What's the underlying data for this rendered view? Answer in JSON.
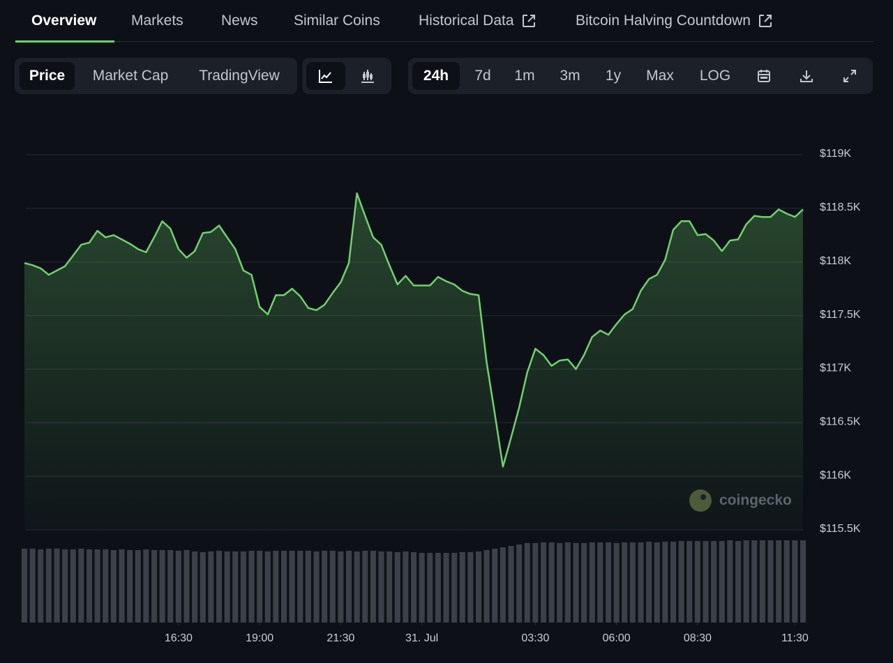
{
  "tabs": [
    "Overview",
    "Markets",
    "News",
    "Similar Coins",
    "Historical Data",
    "Bitcoin Halving Countdown"
  ],
  "chart_modes": [
    "Price",
    "Market Cap",
    "TradingView"
  ],
  "ranges": [
    "24h",
    "7d",
    "1m",
    "3m",
    "1y",
    "Max",
    "LOG"
  ],
  "watermark": "coingecko",
  "chart_data": {
    "type": "line",
    "color": "#6fd36b",
    "grid": true,
    "x": [
      11.75,
      12,
      12.25,
      12.5,
      12.75,
      13,
      13.25,
      13.5,
      13.75,
      14,
      14.25,
      14.5,
      14.75,
      15,
      15.25,
      15.5,
      15.75,
      16,
      16.25,
      16.5,
      16.75,
      17,
      17.25,
      17.5,
      17.75,
      18,
      18.25,
      18.5,
      18.75,
      19,
      19.25,
      19.5,
      19.75,
      20,
      20.25,
      20.5,
      20.75,
      21,
      21.25,
      21.5,
      21.75,
      22,
      22.25,
      22.5,
      22.75,
      23,
      23.25,
      23.5,
      23.75,
      24,
      24.25,
      24.5,
      24.75,
      25,
      25.25,
      25.5,
      25.75,
      26,
      26.25,
      26.5,
      26.75,
      27,
      27.25,
      27.5,
      27.75,
      28,
      28.25,
      28.5,
      28.75,
      29,
      29.25,
      29.5,
      29.75,
      30,
      30.25,
      30.5,
      30.75,
      31,
      31.25,
      31.5,
      31.75,
      32,
      32.25,
      32.5,
      32.75,
      33,
      33.25,
      33.5,
      33.75,
      34,
      34.25,
      34.5,
      34.75,
      35,
      35.25,
      35.5,
      35.75
    ],
    "values": [
      117990,
      117970,
      117940,
      117880,
      117920,
      117960,
      118060,
      118160,
      118180,
      118290,
      118230,
      118250,
      118210,
      118170,
      118120,
      118090,
      118230,
      118380,
      118310,
      118120,
      118040,
      118100,
      118270,
      118280,
      118340,
      118230,
      118120,
      117920,
      117880,
      117580,
      117510,
      117690,
      117690,
      117750,
      117680,
      117570,
      117550,
      117600,
      117710,
      117810,
      117990,
      118640,
      118430,
      118230,
      118160,
      117970,
      117790,
      117870,
      117780,
      117780,
      117780,
      117860,
      117820,
      117790,
      117730,
      117700,
      117690,
      117060,
      116580,
      116090,
      116360,
      116640,
      116970,
      117190,
      117130,
      117030,
      117080,
      117090,
      117000,
      117130,
      117300,
      117360,
      117320,
      117420,
      117510,
      117560,
      117730,
      117840,
      117880,
      118020,
      118300,
      118380,
      118380,
      118250,
      118260,
      118200,
      118100,
      118200,
      118210,
      118350,
      118430,
      118420,
      118420,
      118490,
      118450,
      118420,
      118490
    ],
    "volume": [
      106,
      106,
      105,
      106,
      106,
      105,
      105,
      106,
      105,
      105,
      105,
      104,
      105,
      104,
      104,
      105,
      104,
      104,
      104,
      103,
      104,
      102,
      101,
      102,
      103,
      102,
      102,
      102,
      103,
      103,
      102,
      103,
      103,
      103,
      103,
      103,
      102,
      103,
      103,
      102,
      103,
      102,
      103,
      103,
      102,
      102,
      101,
      102,
      101,
      100,
      100,
      100,
      100,
      100,
      101,
      101,
      102,
      104,
      106,
      108,
      110,
      112,
      114,
      114,
      115,
      115,
      114,
      115,
      114,
      114,
      115,
      115,
      115,
      114,
      115,
      115,
      115,
      116,
      115,
      116,
      116,
      117,
      117,
      117,
      117,
      117,
      117,
      118,
      117,
      118,
      118,
      118,
      118,
      118,
      118,
      118,
      118
    ],
    "xlim": [
      11.75,
      35.75
    ],
    "xticks": [
      {
        "value": 16.5,
        "label": "16:30"
      },
      {
        "value": 19,
        "label": "19:00"
      },
      {
        "value": 21.5,
        "label": "21:30"
      },
      {
        "value": 24,
        "label": "31. Jul"
      },
      {
        "value": 27.5,
        "label": "03:30"
      },
      {
        "value": 30,
        "label": "06:00"
      },
      {
        "value": 32.5,
        "label": "08:30"
      },
      {
        "value": 35.5,
        "label": "11:30"
      }
    ],
    "ylim": [
      115500,
      119000
    ],
    "yticks": [
      {
        "value": 115500,
        "label": "$115.5K"
      },
      {
        "value": 116000,
        "label": "$116K"
      },
      {
        "value": 116500,
        "label": "$116.5K"
      },
      {
        "value": 117000,
        "label": "$117K"
      },
      {
        "value": 117500,
        "label": "$117.5K"
      },
      {
        "value": 118000,
        "label": "$118K"
      },
      {
        "value": 118500,
        "label": "$118.5K"
      },
      {
        "value": 119000,
        "label": "$119K"
      }
    ]
  }
}
